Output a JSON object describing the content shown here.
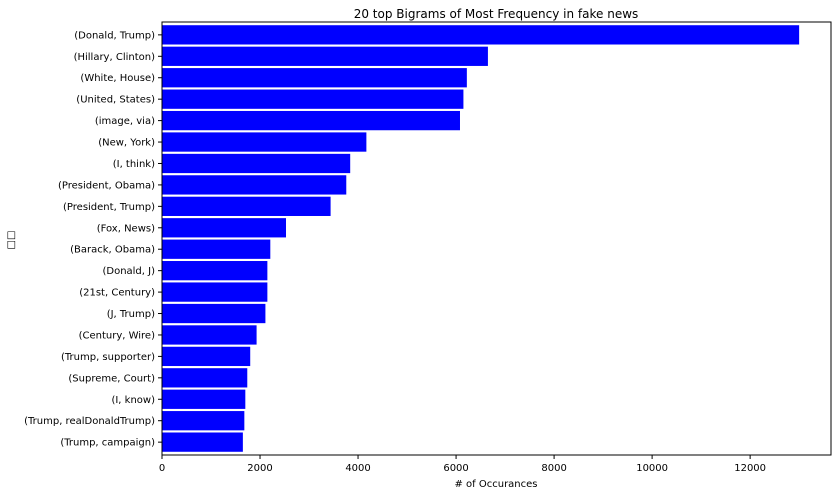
{
  "chart_data": {
    "type": "bar",
    "orientation": "horizontal",
    "title": "20 top Bigrams of Most Frequency in fake news",
    "xlabel": "# of Occurances",
    "ylabel": "□□",
    "xlim": [
      0,
      13650
    ],
    "xticks": [
      0,
      2000,
      4000,
      6000,
      8000,
      10000,
      12000
    ],
    "xtick_labels": [
      "0",
      "2000",
      "4000",
      "6000",
      "8000",
      "10000",
      "12000"
    ],
    "bar_color": "#0000ff",
    "grid": false,
    "legend": "none",
    "categories": [
      "(Donald, Trump)",
      "(Hillary, Clinton)",
      "(White, House)",
      "(United, States)",
      "(image, via)",
      "(New, York)",
      "(I, think)",
      "(President, Obama)",
      "(President, Trump)",
      "(Fox, News)",
      "(Barack, Obama)",
      "(Donald, J)",
      "(21st, Century)",
      "(J, Trump)",
      "(Century, Wire)",
      "(Trump, supporter)",
      "(Supreme, Court)",
      "(I, know)",
      "(Trump, realDonaldTrump)",
      "(Trump, campaign)"
    ],
    "values": [
      13000,
      6650,
      6220,
      6150,
      6080,
      4170,
      3840,
      3760,
      3440,
      2530,
      2210,
      2150,
      2150,
      2110,
      1930,
      1800,
      1740,
      1700,
      1680,
      1650
    ]
  }
}
